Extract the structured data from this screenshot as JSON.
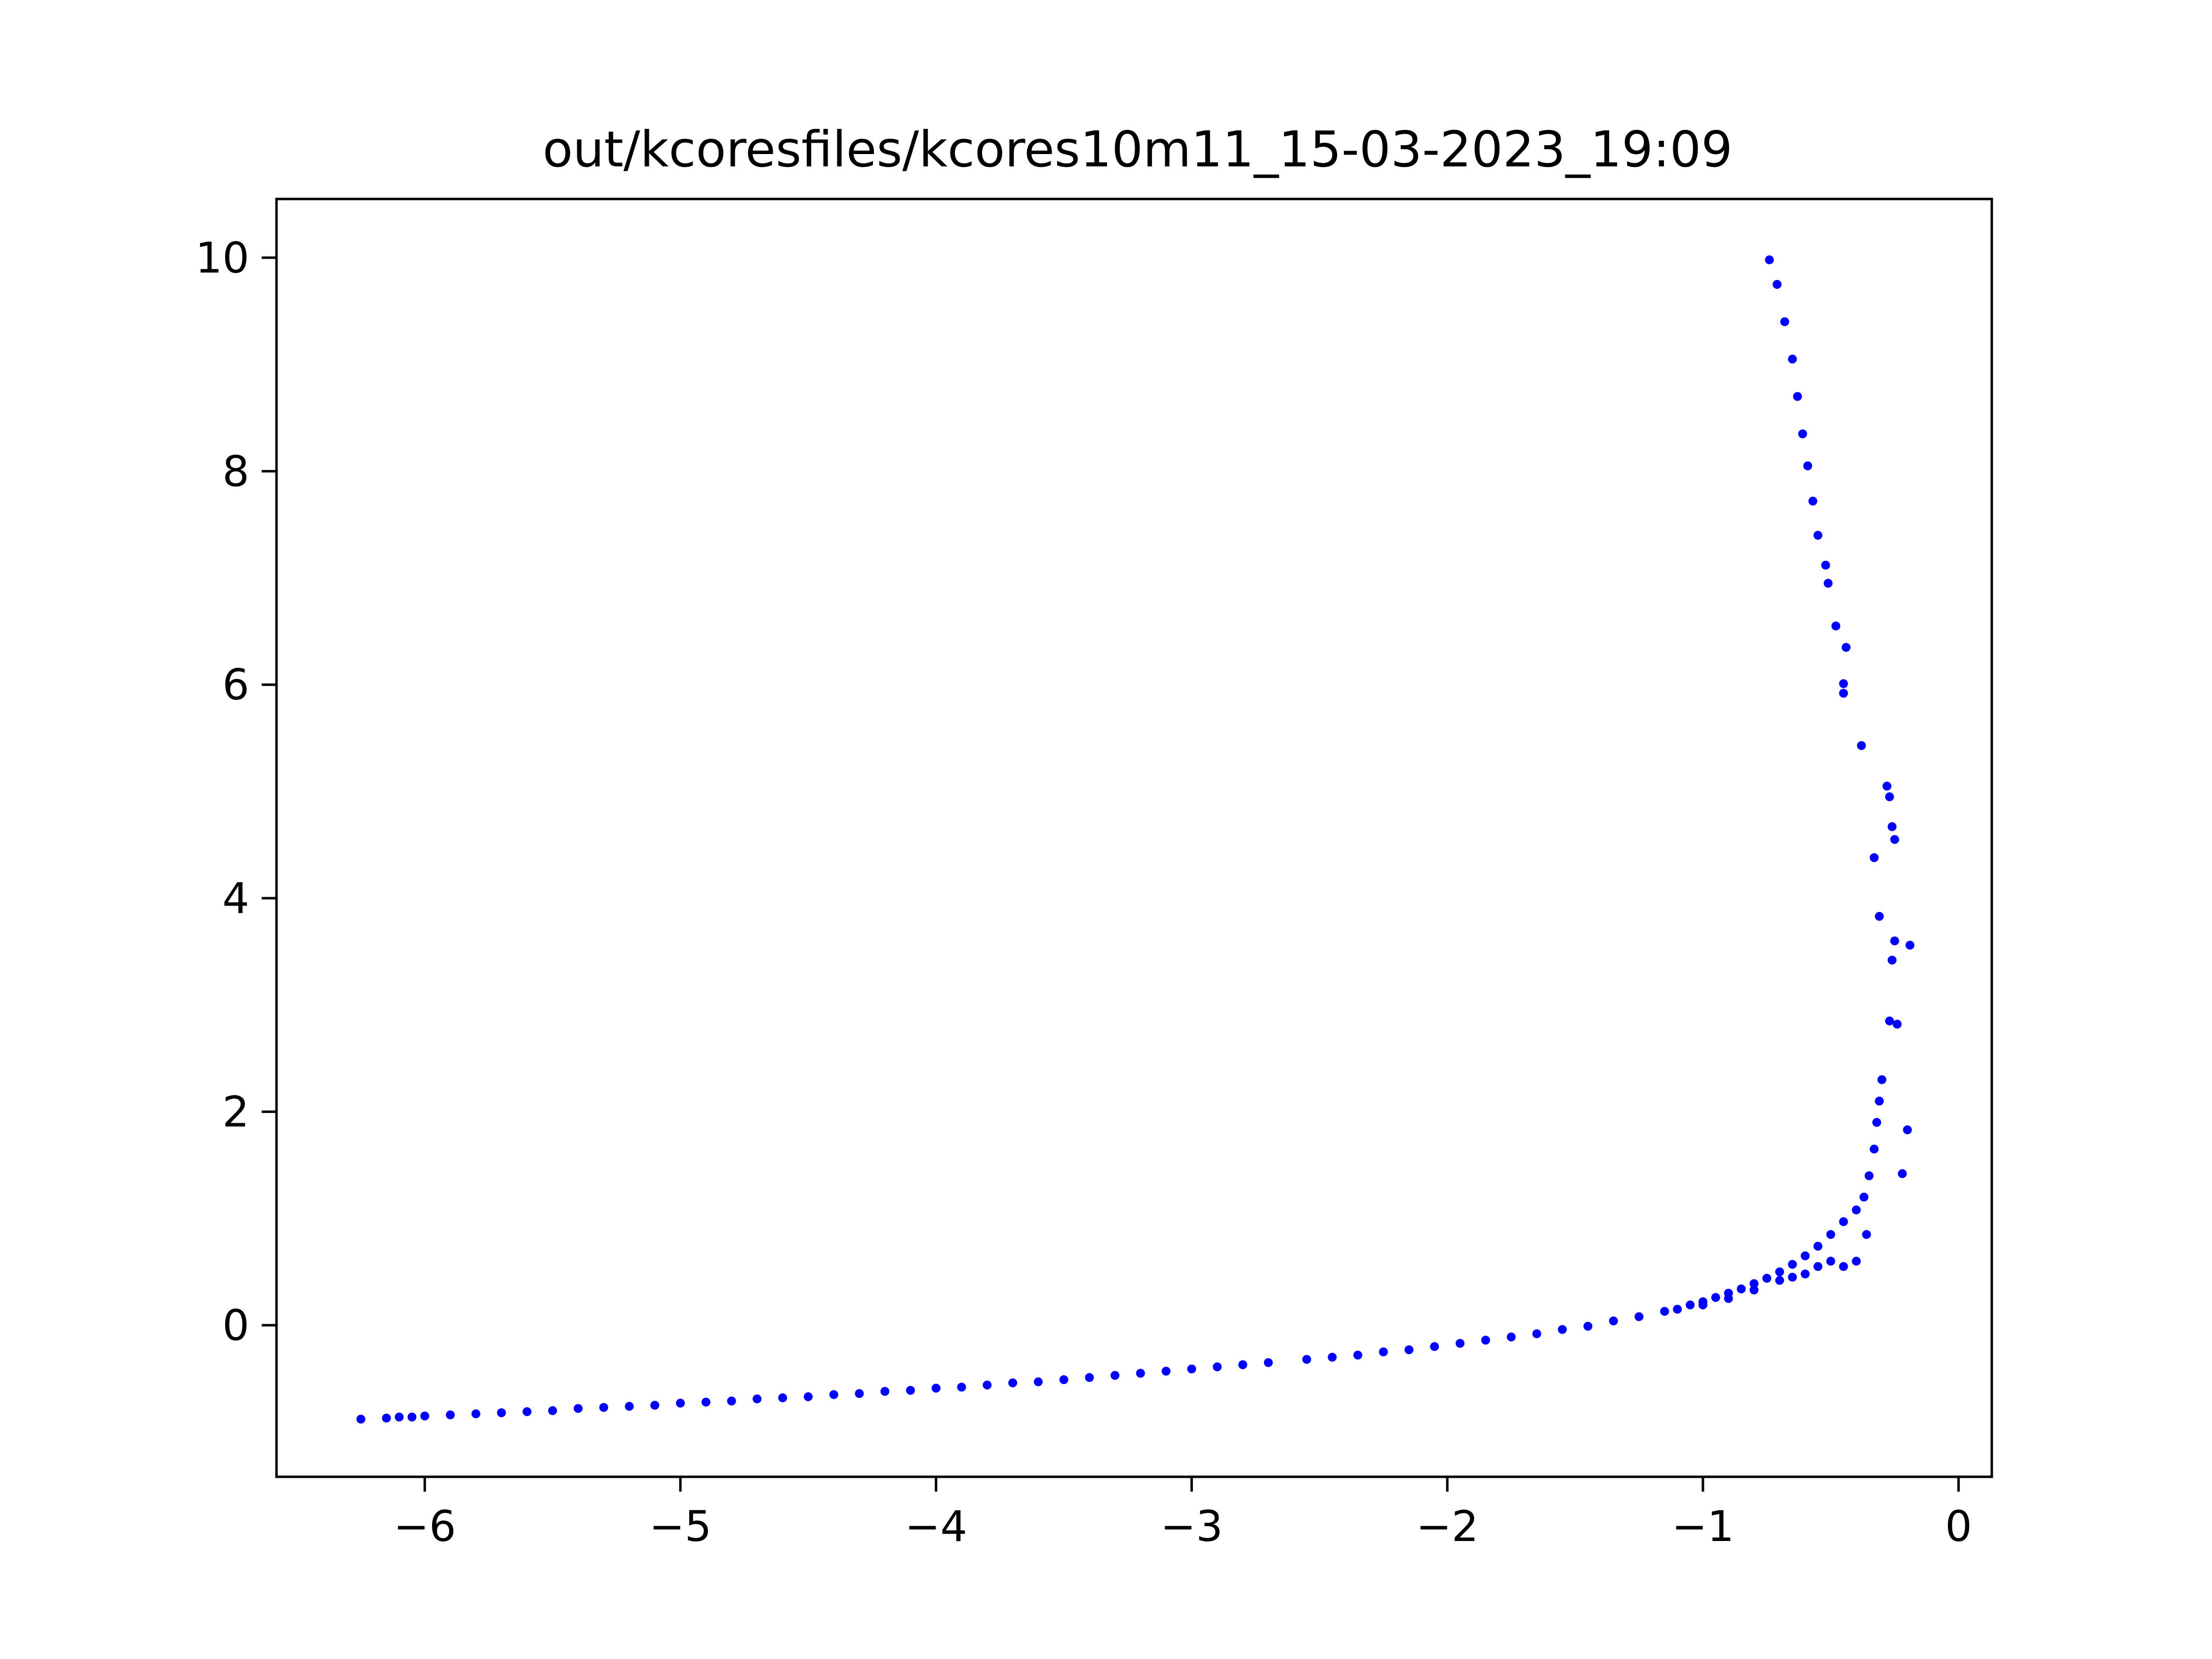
{
  "chart_data": {
    "type": "scatter",
    "title": "out/kcoresfiles/kcores10m11_15-03-2023_19:09",
    "xlabel": "",
    "ylabel": "",
    "xlim": [
      -6.58,
      0.13
    ],
    "ylim": [
      -1.42,
      10.55
    ],
    "xticks": [
      -6,
      -5,
      -4,
      -3,
      -2,
      -1,
      0
    ],
    "xtick_labels": [
      "−6",
      "−5",
      "−4",
      "−3",
      "−2",
      "−1",
      "0"
    ],
    "yticks": [
      0,
      2,
      4,
      6,
      8,
      10
    ],
    "ytick_labels": [
      "0",
      "2",
      "4",
      "6",
      "8",
      "10"
    ],
    "grid": false,
    "legend": "none",
    "marker_color": "#0000ff",
    "series": [
      {
        "values_description_omitted": true,
        "points": [
          [
            -6.25,
            -0.88
          ],
          [
            -6.15,
            -0.87
          ],
          [
            -6.1,
            -0.86
          ],
          [
            -6.05,
            -0.86
          ],
          [
            -6.0,
            -0.85
          ],
          [
            -5.9,
            -0.84
          ],
          [
            -5.8,
            -0.83
          ],
          [
            -5.7,
            -0.82
          ],
          [
            -5.6,
            -0.81
          ],
          [
            -5.5,
            -0.8
          ],
          [
            -5.4,
            -0.78
          ],
          [
            -5.3,
            -0.77
          ],
          [
            -5.2,
            -0.76
          ],
          [
            -5.1,
            -0.75
          ],
          [
            -5.0,
            -0.73
          ],
          [
            -4.9,
            -0.72
          ],
          [
            -4.8,
            -0.71
          ],
          [
            -4.7,
            -0.69
          ],
          [
            -4.6,
            -0.68
          ],
          [
            -4.5,
            -0.67
          ],
          [
            -4.4,
            -0.65
          ],
          [
            -4.3,
            -0.64
          ],
          [
            -4.2,
            -0.62
          ],
          [
            -4.1,
            -0.61
          ],
          [
            -4.0,
            -0.59
          ],
          [
            -3.9,
            -0.58
          ],
          [
            -3.8,
            -0.56
          ],
          [
            -3.7,
            -0.54
          ],
          [
            -3.6,
            -0.53
          ],
          [
            -3.5,
            -0.51
          ],
          [
            -3.4,
            -0.49
          ],
          [
            -3.3,
            -0.47
          ],
          [
            -3.2,
            -0.45
          ],
          [
            -3.1,
            -0.43
          ],
          [
            -3.0,
            -0.41
          ],
          [
            -2.9,
            -0.39
          ],
          [
            -2.8,
            -0.37
          ],
          [
            -2.7,
            -0.35
          ],
          [
            -2.55,
            -0.32
          ],
          [
            -2.45,
            -0.3
          ],
          [
            -2.35,
            -0.28
          ],
          [
            -2.25,
            -0.25
          ],
          [
            -2.15,
            -0.23
          ],
          [
            -2.05,
            -0.2
          ],
          [
            -1.95,
            -0.17
          ],
          [
            -1.85,
            -0.14
          ],
          [
            -1.75,
            -0.11
          ],
          [
            -1.65,
            -0.08
          ],
          [
            -1.55,
            -0.04
          ],
          [
            -1.45,
            -0.01
          ],
          [
            -1.35,
            0.04
          ],
          [
            -1.25,
            0.08
          ],
          [
            -1.15,
            0.13
          ],
          [
            -1.05,
            0.19
          ],
          [
            -1.0,
            0.22
          ],
          [
            -0.95,
            0.26
          ],
          [
            -0.9,
            0.3
          ],
          [
            -0.85,
            0.34
          ],
          [
            -0.8,
            0.39
          ],
          [
            -0.75,
            0.44
          ],
          [
            -0.7,
            0.5
          ],
          [
            -0.65,
            0.57
          ],
          [
            -0.6,
            0.65
          ],
          [
            -0.55,
            0.74
          ],
          [
            -0.5,
            0.85
          ],
          [
            -0.45,
            0.97
          ],
          [
            -0.4,
            1.08
          ],
          [
            -0.37,
            1.2
          ],
          [
            -0.35,
            1.4
          ],
          [
            -0.33,
            1.65
          ],
          [
            -0.32,
            1.9
          ],
          [
            -0.31,
            2.1
          ],
          [
            -0.3,
            2.3
          ],
          [
            -0.27,
            2.85
          ],
          [
            -0.24,
            2.82
          ],
          [
            -0.2,
            1.83
          ],
          [
            -0.22,
            1.42
          ],
          [
            -0.19,
            3.56
          ],
          [
            -0.26,
            3.42
          ],
          [
            -0.25,
            3.6
          ],
          [
            -0.31,
            3.83
          ],
          [
            -0.33,
            4.38
          ],
          [
            -0.25,
            4.55
          ],
          [
            -0.26,
            4.67
          ],
          [
            -0.27,
            4.95
          ],
          [
            -0.28,
            5.05
          ],
          [
            -0.38,
            5.43
          ],
          [
            -0.45,
            5.92
          ],
          [
            -0.45,
            6.01
          ],
          [
            -0.44,
            6.35
          ],
          [
            -0.48,
            6.55
          ],
          [
            -0.51,
            6.95
          ],
          [
            -0.52,
            7.12
          ],
          [
            -0.55,
            7.4
          ],
          [
            -0.57,
            7.72
          ],
          [
            -0.59,
            8.05
          ],
          [
            -0.61,
            8.35
          ],
          [
            -0.63,
            8.7
          ],
          [
            -0.65,
            9.05
          ],
          [
            -0.68,
            9.4
          ],
          [
            -0.71,
            9.75
          ],
          [
            -0.74,
            9.98
          ],
          [
            -0.36,
            0.85
          ],
          [
            -0.4,
            0.6
          ],
          [
            -0.45,
            0.55
          ],
          [
            -0.5,
            0.6
          ],
          [
            -0.55,
            0.55
          ],
          [
            -0.6,
            0.48
          ],
          [
            -0.65,
            0.45
          ],
          [
            -0.7,
            0.42
          ],
          [
            -0.8,
            0.33
          ],
          [
            -0.9,
            0.25
          ],
          [
            -1.0,
            0.19
          ],
          [
            -1.1,
            0.15
          ]
        ]
      }
    ]
  }
}
